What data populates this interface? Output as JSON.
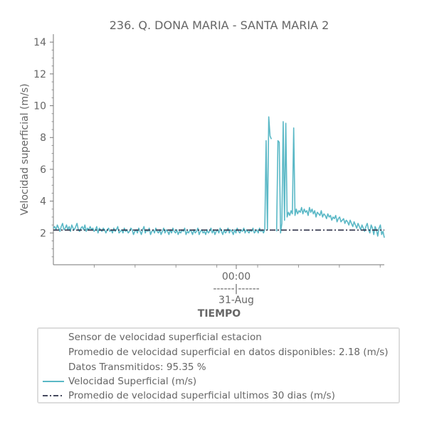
{
  "chart_data": {
    "type": "line",
    "title": "236. Q. DONA MARIA - SANTA MARIA 2",
    "ylabel": "Velocidad superficial (m/s)",
    "xlabel": "TIEMPO",
    "ylim": [
      0,
      14.5
    ],
    "y_ticks": [
      2,
      4,
      6,
      8,
      10,
      12,
      14
    ],
    "x_tick_label": {
      "time": "00:00",
      "separator": "------|------",
      "date": "31-Aug"
    },
    "series": [
      {
        "name": "Velocidad Superficial (m/s)",
        "color": "#5ab8c6",
        "values": [
          2.3,
          2.4,
          2.2,
          2.5,
          2.3,
          2.1,
          2.4,
          2.6,
          2.2,
          2.3,
          2.5,
          2.2,
          2.4,
          2.1,
          2.5,
          2.3,
          2.2,
          2.4,
          2.6,
          2.2,
          2.1,
          2.3,
          2.4,
          2.2,
          2.5,
          2.1,
          2.3,
          2.2,
          2.4,
          2.2,
          2.3,
          2.1,
          2.2,
          2.4,
          2.0,
          2.3,
          2.2,
          2.1,
          2.3,
          2.2,
          2.0,
          2.2,
          2.3,
          2.1,
          2.2,
          2.0,
          2.3,
          2.1,
          2.2,
          2.4,
          2.0,
          2.1,
          2.2,
          2.0,
          2.3,
          2.1,
          2.2,
          2.0,
          2.1,
          2.3,
          2.2,
          1.9,
          2.1,
          2.2,
          2.0,
          2.3,
          2.1,
          1.9,
          2.2,
          2.4,
          2.0,
          2.2,
          2.1,
          2.3,
          1.9,
          2.1,
          2.2,
          2.0,
          2.3,
          2.1,
          2.0,
          2.2,
          1.9,
          2.1,
          2.3,
          2.0,
          2.2,
          2.1,
          1.9,
          2.2,
          2.0,
          2.3,
          2.1,
          2.0,
          2.2,
          1.9,
          2.1,
          2.0,
          2.2,
          2.1,
          2.3,
          1.9,
          2.1,
          2.0,
          2.2,
          2.1,
          1.9,
          2.2,
          2.0,
          2.1,
          2.3,
          1.9,
          2.1,
          2.2,
          2.0,
          2.1,
          1.9,
          2.2,
          2.0,
          2.1,
          2.3,
          2.0,
          2.2,
          1.9,
          2.1,
          2.2,
          2.0,
          2.3,
          2.1,
          1.9,
          2.2,
          2.0,
          2.1,
          2.3,
          2.0,
          2.2,
          2.1,
          1.9,
          2.2,
          2.0,
          2.3,
          2.1,
          2.0,
          2.2,
          2.1,
          2.3,
          2.0,
          2.2,
          2.1,
          2.0,
          2.2,
          2.1,
          2.3,
          2.0,
          2.1,
          2.2,
          2.0,
          2.3,
          2.1,
          2.2,
          2.0,
          2.2,
          7.8,
          2.2,
          9.3,
          8.1,
          7.9,
          null,
          8.6,
          null,
          2.1,
          7.8,
          7.7,
          2.0,
          2.6,
          9.0,
          2.8,
          8.9,
          3.0,
          3.3,
          3.1,
          3.4,
          3.2,
          8.6,
          3.1,
          3.5,
          3.2,
          3.4,
          3.3,
          3.6,
          3.2,
          3.5,
          3.3,
          3.4,
          3.1,
          3.6,
          3.3,
          3.5,
          3.2,
          3.4,
          3.0,
          3.3,
          3.2,
          3.1,
          3.4,
          3.0,
          3.2,
          3.1,
          2.9,
          3.2,
          3.0,
          3.1,
          2.8,
          3.0,
          2.9,
          3.1,
          2.7,
          2.9,
          3.0,
          2.7,
          2.8,
          2.9,
          2.6,
          2.8,
          2.7,
          2.5,
          2.8,
          2.6,
          2.4,
          2.7,
          2.5,
          2.3,
          2.6,
          2.4,
          2.2,
          2.5,
          2.3,
          2.1,
          2.4,
          2.6,
          2.2,
          2.0,
          2.5,
          2.3,
          1.9,
          2.4,
          2.2,
          1.8,
          2.3,
          2.5,
          1.9,
          2.1,
          1.7
        ]
      },
      {
        "name": "Promedio de velocidad superficial ultimos 30 dias (m/s)",
        "color": "#2d3047",
        "values": [
          2.18,
          2.18
        ]
      }
    ],
    "legend": {
      "placement": "below",
      "info_lines": [
        "Sensor de velocidad superficial estacion",
        "Promedio de velocidad superficial en datos disponibles: 2.18 (m/s)",
        "Datos Transmitidos: 95.35 %"
      ],
      "series_entries": [
        "Velocidad Superficial (m/s)",
        "Promedio de velocidad superficial ultimos 30 dias (m/s)"
      ]
    }
  }
}
